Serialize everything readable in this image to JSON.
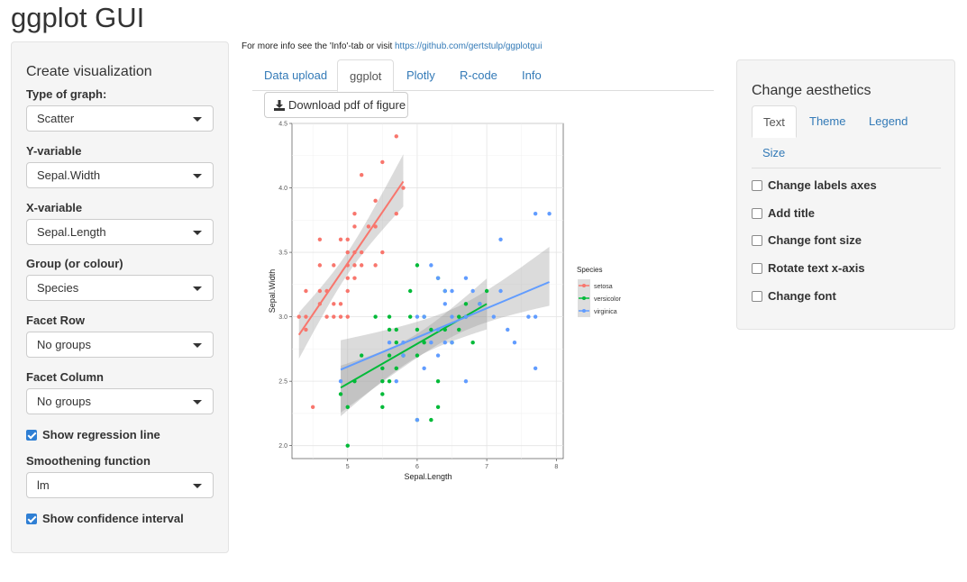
{
  "app": {
    "title": "ggplot GUI"
  },
  "left_panel": {
    "heading": "Create visualization",
    "fields": [
      {
        "label": "Type of graph:",
        "value": "Scatter"
      },
      {
        "label": "Y-variable",
        "value": "Sepal.Width"
      },
      {
        "label": "X-variable",
        "value": "Sepal.Length"
      },
      {
        "label": "Group (or colour)",
        "value": "Species"
      },
      {
        "label": "Facet Row",
        "value": "No groups"
      },
      {
        "label": "Facet Column",
        "value": "No groups"
      }
    ],
    "show_regression": {
      "label": "Show regression line",
      "checked": true
    },
    "smoothing": {
      "label": "Smoothening function",
      "value": "lm"
    },
    "show_ci": {
      "label": "Show confidence interval",
      "checked": true
    }
  },
  "info": {
    "text": "For more info see the 'Info'-tab or visit ",
    "link": "https://github.com/gertstulp/ggplotgui"
  },
  "tabs": [
    "Data upload",
    "ggplot",
    "Plotly",
    "R-code",
    "Info"
  ],
  "active_tab": "ggplot",
  "download_button": {
    "label": "Download pdf of figure",
    "icon": "download-icon"
  },
  "right_panel": {
    "heading": "Change aesthetics",
    "tabs": [
      "Text",
      "Theme",
      "Legend",
      "Size"
    ],
    "active_tab": "Text",
    "options": [
      "Change labels axes",
      "Add title",
      "Change font size",
      "Rotate text x-axis",
      "Change font"
    ]
  },
  "colors": {
    "accent": "#337ab7",
    "checkbox": "#2f7fd4",
    "panel_bg": "#f5f5f5"
  },
  "chart_data": {
    "type": "scatter",
    "xlabel": "Sepal.Length",
    "ylabel": "Sepal.Width",
    "xlim": [
      4.2,
      8.1
    ],
    "ylim": [
      1.9,
      4.5
    ],
    "xticks": [
      "5",
      "6",
      "7",
      "8"
    ],
    "yticks": [
      "2.0",
      "2.5",
      "3.0",
      "3.5",
      "4.0",
      "4.5"
    ],
    "grid": true,
    "legend": {
      "title": "Species",
      "placement": "right"
    },
    "regression": "lm with confidence band",
    "series": [
      {
        "name": "setosa",
        "color": "#f8766d",
        "fit": [
          [
            4.3,
            2.86
          ],
          [
            5.8,
            4.05
          ]
        ],
        "points": [
          [
            4.4,
            2.9
          ],
          [
            4.4,
            3.0
          ],
          [
            4.4,
            3.2
          ],
          [
            4.3,
            3.0
          ],
          [
            4.5,
            2.3
          ],
          [
            4.6,
            3.1
          ],
          [
            4.6,
            3.4
          ],
          [
            4.6,
            3.6
          ],
          [
            4.6,
            3.2
          ],
          [
            4.7,
            3.2
          ],
          [
            4.7,
            3.0
          ],
          [
            4.8,
            3.4
          ],
          [
            4.8,
            3.0
          ],
          [
            4.8,
            3.1
          ],
          [
            4.9,
            3.0
          ],
          [
            4.9,
            3.1
          ],
          [
            4.9,
            3.6
          ],
          [
            5.0,
            3.6
          ],
          [
            5.0,
            3.4
          ],
          [
            5.0,
            3.0
          ],
          [
            5.0,
            3.3
          ],
          [
            5.0,
            3.2
          ],
          [
            5.0,
            3.5
          ],
          [
            5.1,
            3.5
          ],
          [
            5.1,
            3.8
          ],
          [
            5.1,
            3.7
          ],
          [
            5.1,
            3.3
          ],
          [
            5.1,
            3.4
          ],
          [
            5.2,
            3.5
          ],
          [
            5.2,
            3.4
          ],
          [
            5.2,
            4.1
          ],
          [
            5.3,
            3.7
          ],
          [
            5.4,
            3.9
          ],
          [
            5.4,
            3.7
          ],
          [
            5.4,
            3.4
          ],
          [
            5.5,
            4.2
          ],
          [
            5.5,
            3.5
          ],
          [
            5.7,
            4.4
          ],
          [
            5.7,
            3.8
          ],
          [
            5.8,
            4.0
          ]
        ]
      },
      {
        "name": "versicolor",
        "color": "#00ba38",
        "fit": [
          [
            4.9,
            2.45
          ],
          [
            7.0,
            3.1
          ]
        ],
        "points": [
          [
            4.9,
            2.4
          ],
          [
            5.0,
            2.0
          ],
          [
            5.0,
            2.3
          ],
          [
            5.1,
            2.5
          ],
          [
            5.2,
            2.7
          ],
          [
            5.4,
            3.0
          ],
          [
            5.5,
            2.3
          ],
          [
            5.5,
            2.4
          ],
          [
            5.5,
            2.5
          ],
          [
            5.5,
            2.6
          ],
          [
            5.6,
            2.9
          ],
          [
            5.6,
            2.5
          ],
          [
            5.6,
            3.0
          ],
          [
            5.6,
            2.7
          ],
          [
            5.7,
            2.8
          ],
          [
            5.7,
            2.6
          ],
          [
            5.7,
            2.9
          ],
          [
            5.8,
            2.7
          ],
          [
            5.9,
            3.0
          ],
          [
            5.9,
            3.2
          ],
          [
            6.0,
            2.2
          ],
          [
            6.0,
            2.9
          ],
          [
            6.0,
            3.4
          ],
          [
            6.0,
            2.7
          ],
          [
            6.1,
            2.8
          ],
          [
            6.1,
            3.0
          ],
          [
            6.2,
            2.2
          ],
          [
            6.2,
            2.9
          ],
          [
            6.3,
            2.3
          ],
          [
            6.3,
            2.5
          ],
          [
            6.3,
            3.3
          ],
          [
            6.4,
            3.2
          ],
          [
            6.4,
            2.9
          ],
          [
            6.5,
            2.8
          ],
          [
            6.6,
            2.9
          ],
          [
            6.6,
            3.0
          ],
          [
            6.7,
            3.1
          ],
          [
            6.7,
            3.0
          ],
          [
            6.8,
            2.8
          ],
          [
            6.9,
            3.1
          ],
          [
            7.0,
            3.2
          ]
        ]
      },
      {
        "name": "virginica",
        "color": "#619cff",
        "fit": [
          [
            4.9,
            2.59
          ],
          [
            7.9,
            3.27
          ]
        ],
        "points": [
          [
            4.9,
            2.5
          ],
          [
            5.6,
            2.8
          ],
          [
            5.7,
            2.5
          ],
          [
            5.8,
            2.7
          ],
          [
            5.8,
            2.8
          ],
          [
            6.0,
            2.2
          ],
          [
            6.0,
            3.0
          ],
          [
            6.1,
            3.0
          ],
          [
            6.1,
            2.6
          ],
          [
            6.2,
            3.4
          ],
          [
            6.2,
            2.8
          ],
          [
            6.3,
            3.3
          ],
          [
            6.3,
            2.9
          ],
          [
            6.3,
            2.7
          ],
          [
            6.4,
            2.8
          ],
          [
            6.4,
            3.2
          ],
          [
            6.4,
            3.1
          ],
          [
            6.5,
            3.0
          ],
          [
            6.5,
            3.2
          ],
          [
            6.5,
            2.8
          ],
          [
            6.7,
            3.3
          ],
          [
            6.7,
            3.0
          ],
          [
            6.7,
            2.5
          ],
          [
            6.8,
            3.2
          ],
          [
            6.9,
            3.1
          ],
          [
            7.1,
            3.0
          ],
          [
            7.2,
            3.6
          ],
          [
            7.2,
            3.2
          ],
          [
            7.3,
            2.9
          ],
          [
            7.4,
            2.8
          ],
          [
            7.6,
            3.0
          ],
          [
            7.7,
            3.8
          ],
          [
            7.7,
            2.6
          ],
          [
            7.7,
            3.0
          ],
          [
            7.9,
            3.8
          ]
        ]
      }
    ]
  }
}
